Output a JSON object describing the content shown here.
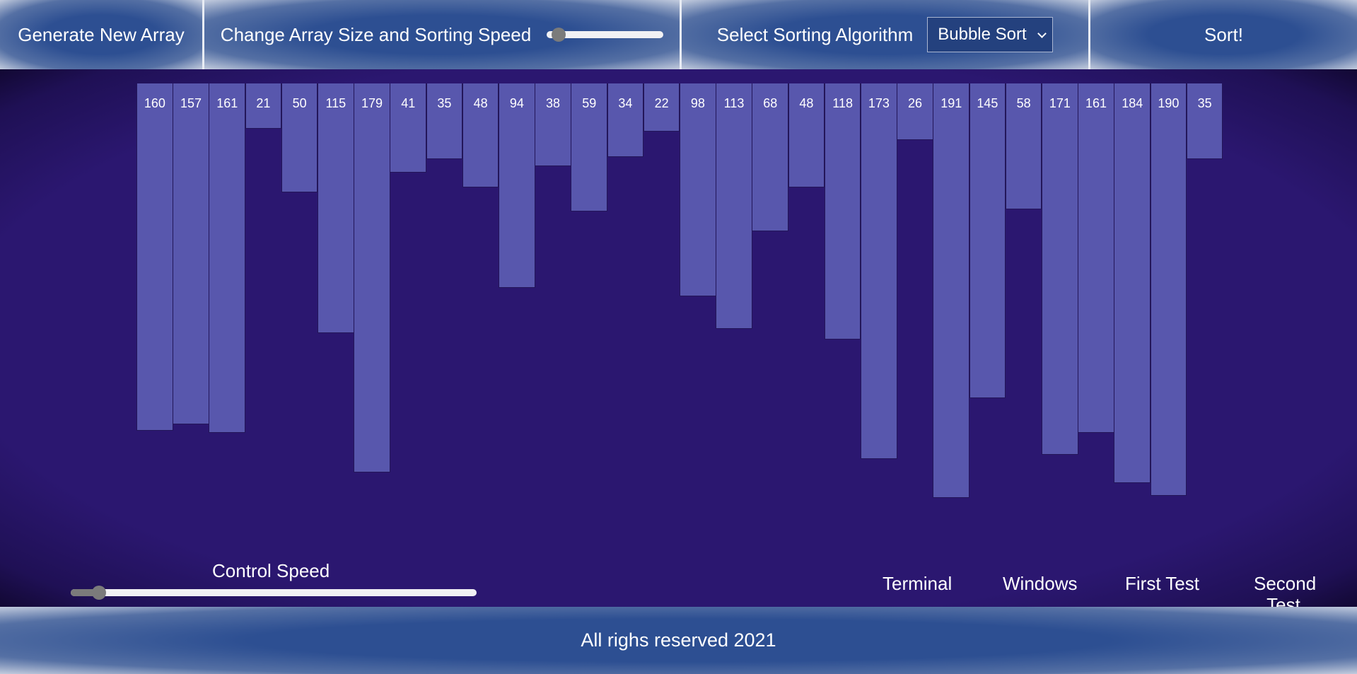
{
  "header": {
    "generate_label": "Generate New Array",
    "size_speed_label": "Change Array Size and Sorting Speed",
    "size_slider_value": 0.1,
    "algorithm_label": "Select Sorting Algorithm",
    "algorithm_selected": "Bubble Sort",
    "sort_label": "Sort!"
  },
  "array": {
    "values": [
      160,
      157,
      161,
      21,
      50,
      115,
      179,
      41,
      35,
      48,
      94,
      38,
      59,
      34,
      22,
      98,
      113,
      68,
      48,
      118,
      173,
      26,
      191,
      145,
      58,
      171,
      161,
      184,
      190,
      35
    ],
    "bar_color": "#5857ad",
    "background_color": "#2b1770"
  },
  "speed": {
    "label": "Control Speed",
    "value": 0.07
  },
  "presets": [
    {
      "label": "Terminal"
    },
    {
      "label": "Windows"
    },
    {
      "label": "First Test"
    },
    {
      "label": "Second Test"
    }
  ],
  "footer": {
    "text": "All righs reserved 2021"
  },
  "colors": {
    "header_blue": "#2d4f92",
    "slider_track": "#f1f1f4",
    "slider_knob": "#7b7b7b"
  }
}
